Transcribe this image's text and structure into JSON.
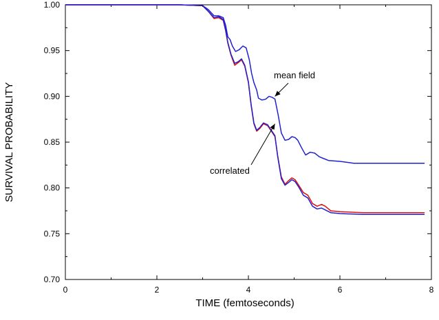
{
  "chart_data": {
    "type": "line",
    "title": "",
    "xlabel": "TIME (femtoseconds)",
    "ylabel": "SURVIVAL PROBABILITY",
    "xlim": [
      0,
      8
    ],
    "ylim": [
      0.7,
      1.0
    ],
    "x_ticks": [
      "0",
      "2",
      "4",
      "6",
      "8"
    ],
    "y_ticks": [
      "0.70",
      "0.75",
      "0.80",
      "0.85",
      "0.90",
      "0.95",
      "1.00"
    ],
    "grid": false,
    "annotations": [
      {
        "text": "mean field",
        "target": [
          4.58,
          0.9
        ]
      },
      {
        "text": "correlated",
        "target": [
          4.58,
          0.87
        ]
      }
    ],
    "series": [
      {
        "color": "#2020d0",
        "x": [
          0,
          2.5,
          3.0,
          3.12,
          3.25,
          3.35,
          3.45,
          3.5,
          3.55,
          3.6,
          3.65,
          3.72,
          3.8,
          3.88,
          3.95,
          4.02,
          4.07,
          4.12,
          4.18,
          4.22,
          4.3,
          4.38,
          4.45,
          4.52,
          4.58,
          4.65,
          4.72,
          4.8,
          4.88,
          4.95,
          5.02,
          5.08,
          5.15,
          5.25,
          5.35,
          5.45,
          5.55,
          5.65,
          5.75,
          6.0,
          6.3,
          7.0,
          7.85
        ],
        "values": [
          1.0,
          1.0,
          0.999,
          0.995,
          0.988,
          0.988,
          0.986,
          0.978,
          0.965,
          0.962,
          0.955,
          0.949,
          0.951,
          0.955,
          0.953,
          0.94,
          0.925,
          0.915,
          0.907,
          0.898,
          0.896,
          0.897,
          0.9,
          0.899,
          0.897,
          0.88,
          0.86,
          0.852,
          0.853,
          0.856,
          0.855,
          0.852,
          0.845,
          0.836,
          0.839,
          0.838,
          0.834,
          0.832,
          0.83,
          0.829,
          0.827,
          0.827,
          0.827
        ]
      },
      {
        "color": "#e01010",
        "x": [
          0,
          2.5,
          3.0,
          3.12,
          3.25,
          3.35,
          3.45,
          3.5,
          3.55,
          3.62,
          3.7,
          3.78,
          3.85,
          3.92,
          4.0,
          4.06,
          4.12,
          4.18,
          4.25,
          4.33,
          4.42,
          4.5,
          4.58,
          4.64,
          4.72,
          4.8,
          4.88,
          4.95,
          5.02,
          5.1,
          5.2,
          5.3,
          5.4,
          5.5,
          5.6,
          5.68,
          5.8,
          6.0,
          6.5,
          7.0,
          7.85
        ],
        "values": [
          1.0,
          1.0,
          0.999,
          0.993,
          0.985,
          0.986,
          0.983,
          0.972,
          0.958,
          0.945,
          0.934,
          0.937,
          0.94,
          0.933,
          0.915,
          0.89,
          0.87,
          0.862,
          0.865,
          0.87,
          0.868,
          0.862,
          0.856,
          0.835,
          0.812,
          0.804,
          0.808,
          0.811,
          0.809,
          0.803,
          0.795,
          0.792,
          0.783,
          0.78,
          0.782,
          0.78,
          0.775,
          0.774,
          0.773,
          0.773,
          0.773
        ]
      },
      {
        "color": "#2020d0",
        "x": [
          0,
          2.5,
          3.0,
          3.12,
          3.25,
          3.35,
          3.45,
          3.5,
          3.55,
          3.62,
          3.7,
          3.78,
          3.85,
          3.92,
          4.0,
          4.06,
          4.12,
          4.18,
          4.25,
          4.33,
          4.42,
          4.5,
          4.58,
          4.64,
          4.72,
          4.8,
          4.88,
          4.95,
          5.02,
          5.1,
          5.2,
          5.3,
          5.4,
          5.5,
          5.6,
          5.68,
          5.8,
          6.0,
          6.5,
          7.0,
          7.85
        ],
        "values": [
          1.0,
          1.0,
          0.999,
          0.993,
          0.986,
          0.987,
          0.984,
          0.973,
          0.959,
          0.946,
          0.936,
          0.938,
          0.941,
          0.934,
          0.916,
          0.891,
          0.871,
          0.863,
          0.866,
          0.871,
          0.869,
          0.863,
          0.857,
          0.834,
          0.81,
          0.803,
          0.806,
          0.809,
          0.807,
          0.801,
          0.792,
          0.789,
          0.78,
          0.777,
          0.778,
          0.776,
          0.773,
          0.772,
          0.771,
          0.771,
          0.771
        ]
      }
    ]
  }
}
